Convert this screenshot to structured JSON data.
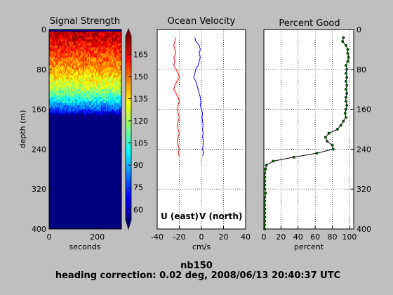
{
  "chart_data": [
    {
      "type": "heatmap",
      "title": "Signal Strength",
      "xlabel": "seconds",
      "ylabel": "depth (m)",
      "xlim": [
        0,
        300
      ],
      "ylim": [
        400,
        0
      ],
      "xticks": [
        "0",
        "200"
      ],
      "yticks": [
        "0",
        "80",
        "160",
        "240",
        "320",
        "400"
      ],
      "colorbar": {
        "range": [
          53,
          177
        ],
        "ticks": [
          "60",
          "75",
          "90",
          "105",
          "120",
          "135",
          "150",
          "165"
        ]
      },
      "profile_depth": [
        10,
        20,
        30,
        40,
        50,
        60,
        70,
        80,
        90,
        100,
        110,
        120,
        130,
        140,
        150,
        160,
        170
      ],
      "profile_value": [
        168,
        165,
        160,
        156,
        152,
        148,
        145,
        140,
        135,
        130,
        124,
        118,
        110,
        100,
        88,
        74,
        55
      ]
    },
    {
      "type": "line",
      "title": "Ocean Velocity",
      "xlabel": "cm/s",
      "xlim": [
        -40,
        40
      ],
      "ylim": [
        400,
        0
      ],
      "xticks": [
        "-40",
        "-20",
        "0",
        "20",
        "40"
      ],
      "legend": [
        {
          "name": "U (east)",
          "color": "#ff0000"
        },
        {
          "name": "V (north)",
          "color": "#0000ff"
        }
      ],
      "series": [
        {
          "name": "U (east)",
          "color": "#ff0000",
          "depth": [
            16,
            24,
            32,
            40,
            48,
            56,
            64,
            72,
            80,
            88,
            96,
            104,
            112,
            120,
            128,
            136,
            144,
            152,
            160,
            168,
            176,
            184,
            192,
            200,
            208,
            216,
            224,
            232,
            240,
            248,
            254
          ],
          "values": [
            -23,
            -24,
            -25,
            -24,
            -23,
            -25,
            -24,
            -25,
            -23,
            -21,
            -20,
            -22,
            -24,
            -25,
            -23,
            -21,
            -20,
            -21,
            -22,
            -21,
            -20,
            -21,
            -22,
            -21,
            -20,
            -21,
            -22,
            -21,
            -20,
            -21,
            -20
          ]
        },
        {
          "name": "V (north)",
          "color": "#0000ff",
          "depth": [
            16,
            24,
            32,
            40,
            48,
            56,
            64,
            72,
            80,
            88,
            96,
            104,
            112,
            120,
            128,
            136,
            144,
            152,
            160,
            168,
            176,
            184,
            192,
            200,
            208,
            216,
            224,
            232,
            240,
            248,
            254
          ],
          "values": [
            -6,
            -5,
            -2,
            -1,
            -2,
            -1,
            -2,
            -3,
            -5,
            -6,
            -7,
            -5,
            -4,
            -3,
            -2,
            -1,
            -0.5,
            -1,
            0,
            1,
            0.5,
            1,
            1.5,
            1,
            1.5,
            1,
            2,
            1.5,
            1,
            2,
            1
          ]
        }
      ]
    },
    {
      "type": "line",
      "title": "Percent Good",
      "xlabel": "percent",
      "xlim": [
        0,
        105
      ],
      "ylim": [
        400,
        0
      ],
      "xticks": [
        "0",
        "20",
        "40",
        "60",
        "80",
        "100"
      ],
      "yticks": [
        "0",
        "80",
        "160",
        "240",
        "320",
        "400"
      ],
      "series": [
        {
          "color": "#006400",
          "depth": [
            16,
            24,
            32,
            40,
            48,
            56,
            64,
            72,
            80,
            88,
            96,
            104,
            112,
            120,
            128,
            136,
            144,
            152,
            160,
            168,
            176,
            184,
            192,
            200,
            208,
            216,
            224,
            232,
            240,
            248,
            256,
            264,
            272,
            280,
            288,
            296,
            304,
            312,
            320,
            328,
            336,
            344,
            352,
            360,
            368,
            376,
            384,
            392,
            400
          ],
          "values": [
            93,
            92,
            96,
            98,
            98,
            99,
            98,
            96,
            97,
            96,
            97,
            96,
            97,
            96,
            97,
            96,
            96,
            97,
            96,
            95,
            96,
            93,
            90,
            86,
            76,
            72,
            74,
            80,
            81,
            62,
            35,
            11,
            3,
            2,
            1,
            1,
            1,
            1,
            1,
            2,
            1,
            1,
            1,
            1,
            1,
            1,
            1,
            1,
            1
          ]
        }
      ]
    }
  ],
  "footer": {
    "line1": "nb150",
    "line2": "heading correction:  0.02 deg, 2008/06/13 20:40:37 UTC"
  }
}
